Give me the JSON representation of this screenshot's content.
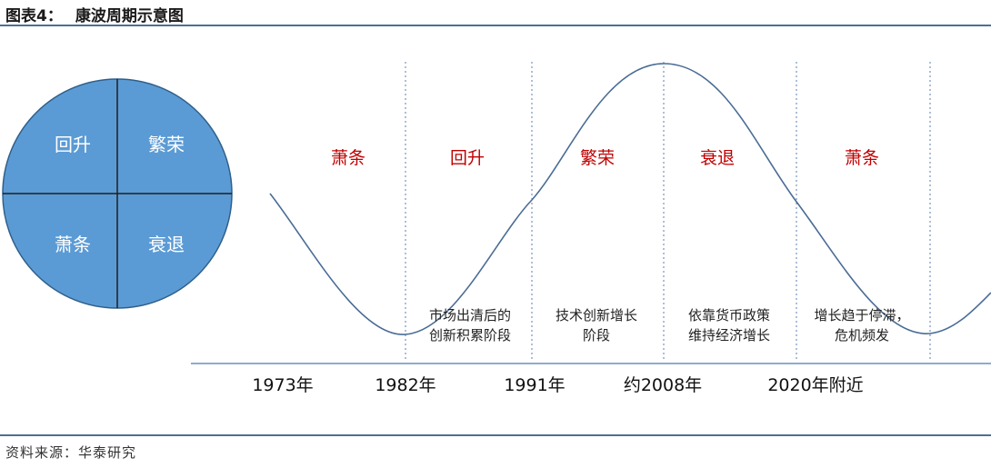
{
  "header": {
    "label": "图表4：",
    "title": "康波周期示意图"
  },
  "circle": {
    "top_left": "回升",
    "top_right": "繁荣",
    "bottom_left": "萧条",
    "bottom_right": "衰退"
  },
  "phases": [
    "萧条",
    "回升",
    "繁荣",
    "衰退",
    "萧条"
  ],
  "descriptions": [
    [
      "市场出清后的",
      "创新积累阶段"
    ],
    [
      "技术创新增长",
      "阶段"
    ],
    [
      "依靠货币政策",
      "维持经济增长"
    ],
    [
      "增长趋于停滞，",
      "危机频发"
    ]
  ],
  "years": [
    "1973年",
    "1982年",
    "1991年",
    "约2008年",
    "2020年附近"
  ],
  "footer": {
    "source": "资料来源：华泰研究"
  },
  "colors": {
    "circle_fill": "#5b9bd5",
    "phase_text": "#c00000",
    "wave": "#4a6c95",
    "rule": "#4f6f96"
  }
}
